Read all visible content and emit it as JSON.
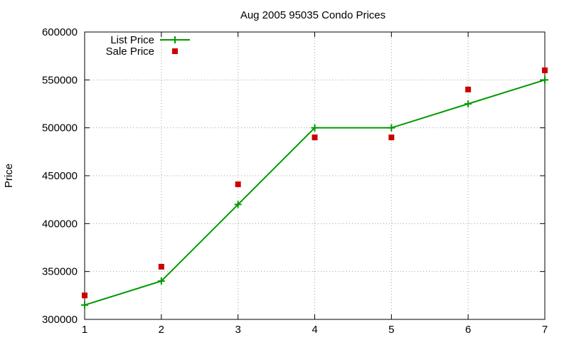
{
  "chart_data": {
    "type": "line",
    "title": "Aug 2005 95035 Condo Prices",
    "xlabel": "",
    "ylabel": "Price",
    "x": [
      1,
      2,
      3,
      4,
      5,
      6,
      7
    ],
    "xlim": [
      1,
      7
    ],
    "ylim": [
      300000,
      600000
    ],
    "x_ticks": [
      1,
      2,
      3,
      4,
      5,
      6,
      7
    ],
    "x_tick_labels": [
      "1",
      "2",
      "3",
      "4",
      "5",
      "6",
      "7"
    ],
    "y_ticks": [
      300000,
      350000,
      400000,
      450000,
      500000,
      550000,
      600000
    ],
    "y_tick_labels": [
      "300000",
      "350000",
      "400000",
      "450000",
      "500000",
      "550000",
      "600000"
    ],
    "grid": true,
    "legend_position": "top-left",
    "series": [
      {
        "name": "List Price",
        "style": "line-with-plus-markers",
        "color": "#009900",
        "values": [
          315000,
          340000,
          420000,
          500000,
          500000,
          525000,
          550000
        ]
      },
      {
        "name": "Sale Price",
        "style": "square-markers",
        "color": "#cc0000",
        "values": [
          325000,
          355000,
          441000,
          490000,
          490000,
          540000,
          560000
        ]
      }
    ]
  }
}
